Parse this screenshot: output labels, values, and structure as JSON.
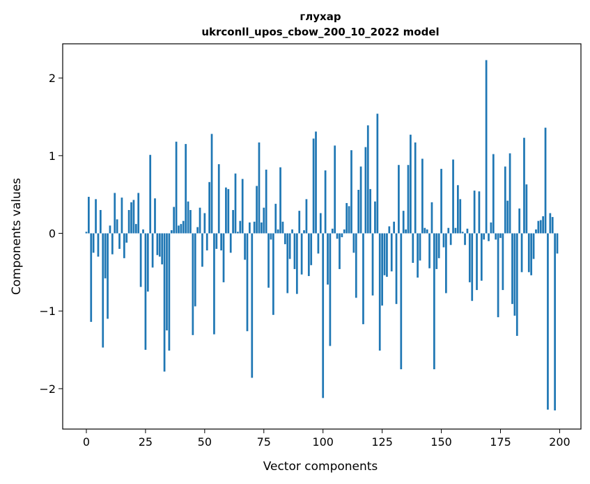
{
  "chart_data": {
    "type": "bar",
    "title": "глухар",
    "subtitle": "ukrconll_upos_cbow_200_10_2022 model",
    "xlabel": "Vector components",
    "ylabel": "Components values",
    "xlim": [
      -10,
      209
    ],
    "ylim": [
      -2.52,
      2.44
    ],
    "xticks": [
      0,
      25,
      50,
      75,
      100,
      125,
      150,
      175,
      200
    ],
    "xtick_labels": [
      "0",
      "25",
      "50",
      "75",
      "100",
      "125",
      "150",
      "175",
      "200"
    ],
    "yticks": [
      2,
      1,
      0,
      -1,
      -2
    ],
    "ytick_labels": [
      "2",
      "1",
      "0",
      "−1",
      "−2"
    ],
    "bar_color": "#1f77b4",
    "grid": false,
    "x": [
      0,
      1,
      2,
      3,
      4,
      5,
      6,
      7,
      8,
      9,
      10,
      11,
      12,
      13,
      14,
      15,
      16,
      17,
      18,
      19,
      20,
      21,
      22,
      23,
      24,
      25,
      26,
      27,
      28,
      29,
      30,
      31,
      32,
      33,
      34,
      35,
      36,
      37,
      38,
      39,
      40,
      41,
      42,
      43,
      44,
      45,
      46,
      47,
      48,
      49,
      50,
      51,
      52,
      53,
      54,
      55,
      56,
      57,
      58,
      59,
      60,
      61,
      62,
      63,
      64,
      65,
      66,
      67,
      68,
      69,
      70,
      71,
      72,
      73,
      74,
      75,
      76,
      77,
      78,
      79,
      80,
      81,
      82,
      83,
      84,
      85,
      86,
      87,
      88,
      89,
      90,
      91,
      92,
      93,
      94,
      95,
      96,
      97,
      98,
      99,
      100,
      101,
      102,
      103,
      104,
      105,
      106,
      107,
      108,
      109,
      110,
      111,
      112,
      113,
      114,
      115,
      116,
      117,
      118,
      119,
      120,
      121,
      122,
      123,
      124,
      125,
      126,
      127,
      128,
      129,
      130,
      131,
      132,
      133,
      134,
      135,
      136,
      137,
      138,
      139,
      140,
      141,
      142,
      143,
      144,
      145,
      146,
      147,
      148,
      149,
      150,
      151,
      152,
      153,
      154,
      155,
      156,
      157,
      158,
      159,
      160,
      161,
      162,
      163,
      164,
      165,
      166,
      167,
      168,
      169,
      170,
      171,
      172,
      173,
      174,
      175,
      176,
      177,
      178,
      179,
      180,
      181,
      182,
      183,
      184,
      185,
      186,
      187,
      188,
      189,
      190,
      191,
      192,
      193,
      194,
      195,
      196,
      197,
      198,
      199
    ],
    "values": [
      0.02,
      0.47,
      -1.14,
      -0.25,
      0.44,
      -0.3,
      0.3,
      -1.47,
      -0.58,
      -1.1,
      0.1,
      -0.27,
      0.52,
      0.18,
      -0.2,
      0.46,
      -0.32,
      -0.12,
      0.3,
      0.4,
      0.43,
      0.12,
      0.52,
      -0.69,
      0.05,
      -1.5,
      -0.75,
      1.01,
      -0.44,
      0.45,
      -0.28,
      -0.3,
      -0.4,
      -1.78,
      -1.25,
      -1.51,
      0.04,
      0.34,
      1.18,
      0.1,
      0.12,
      0.16,
      1.15,
      0.41,
      0.3,
      -1.31,
      -0.94,
      0.08,
      0.33,
      -0.43,
      0.26,
      -0.22,
      0.66,
      1.28,
      -1.3,
      -0.2,
      0.89,
      -0.22,
      -0.63,
      0.59,
      0.57,
      -0.25,
      0.3,
      0.77,
      0.02,
      0.16,
      0.7,
      -0.34,
      -1.26,
      0.14,
      -1.86,
      0.15,
      0.61,
      1.17,
      0.14,
      0.33,
      0.82,
      -0.7,
      -0.08,
      -1.05,
      0.38,
      0.05,
      0.85,
      0.15,
      -0.14,
      -0.77,
      -0.33,
      0.05,
      -0.46,
      -0.78,
      0.29,
      -0.53,
      0.04,
      0.44,
      -0.55,
      -0.41,
      1.22,
      1.31,
      -0.26,
      0.26,
      -2.12,
      0.81,
      -0.66,
      -1.45,
      0.06,
      1.13,
      -0.07,
      -0.46,
      -0.05,
      0.05,
      0.39,
      0.35,
      1.07,
      -0.25,
      -0.83,
      0.56,
      0.86,
      -1.17,
      1.11,
      1.39,
      0.57,
      -0.8,
      0.41,
      1.54,
      -1.51,
      -0.93,
      -0.54,
      -0.56,
      0.09,
      -0.49,
      0.15,
      -0.91,
      0.88,
      -1.75,
      0.29,
      0.05,
      0.88,
      1.27,
      -0.38,
      1.17,
      -0.57,
      -0.35,
      0.96,
      0.07,
      0.05,
      -0.45,
      0.4,
      -1.75,
      -0.46,
      -0.32,
      0.83,
      -0.18,
      -0.77,
      0.07,
      -0.15,
      0.95,
      0.07,
      0.62,
      0.44,
      0.02,
      -0.15,
      0.06,
      -0.63,
      -0.87,
      0.55,
      -0.73,
      0.54,
      -0.61,
      -0.08,
      2.23,
      -0.1,
      0.14,
      1.02,
      -0.08,
      -1.08,
      -0.06,
      -0.73,
      0.86,
      0.42,
      1.03,
      -0.91,
      -1.06,
      -1.32,
      0.32,
      -0.5,
      1.23,
      0.63,
      -0.5,
      -0.54,
      -0.33,
      0.05,
      0.16,
      0.17,
      0.22,
      1.36,
      -2.27,
      0.26,
      0.21,
      -2.28,
      -0.26
    ]
  }
}
